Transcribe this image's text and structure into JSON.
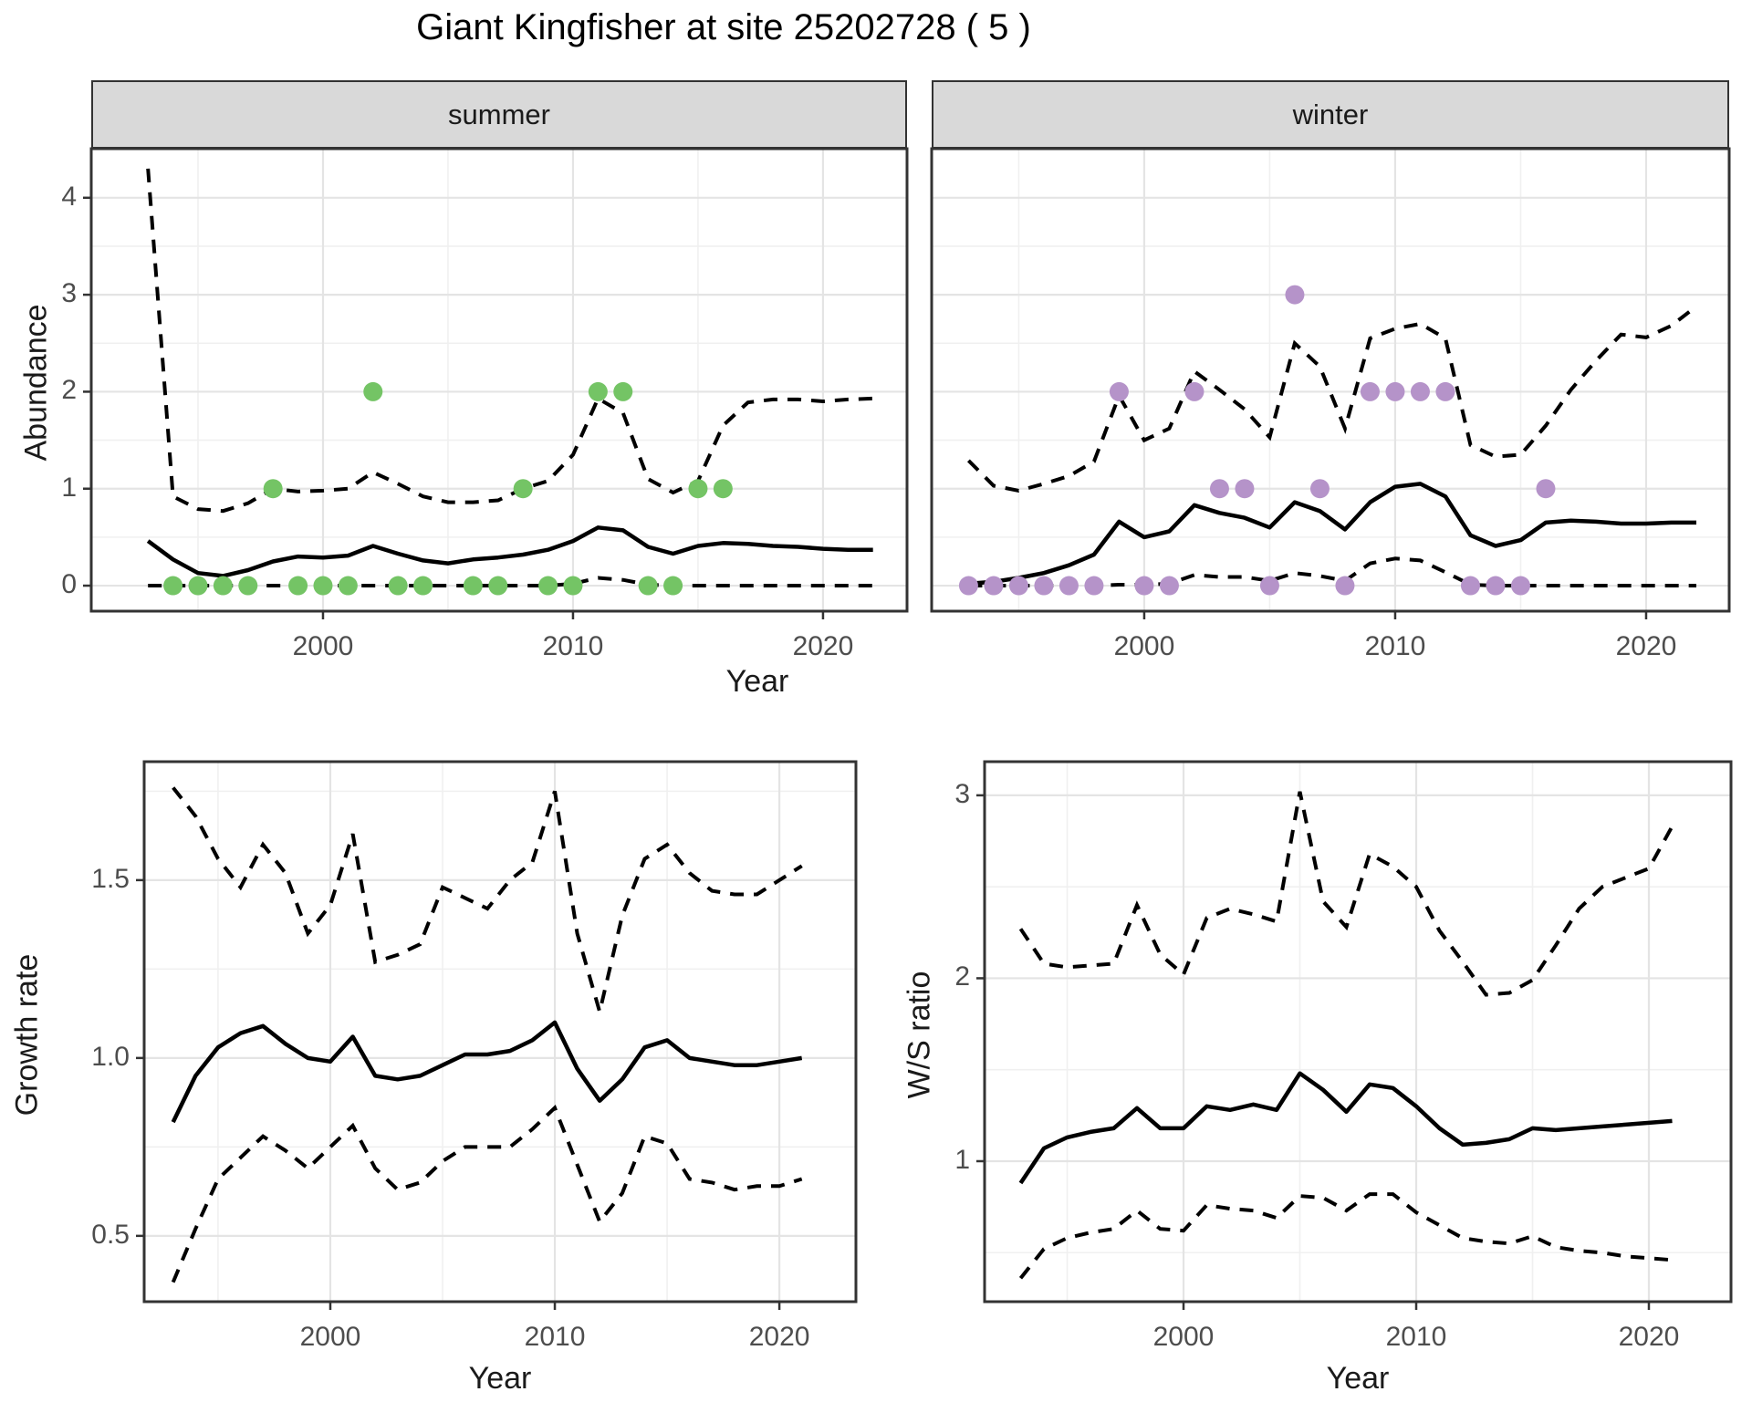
{
  "title": "Giant Kingfisher at site 25202728 ( 5 )",
  "axes": {
    "x_label": "Year",
    "y_label_abundance": "Abundance",
    "y_label_growth": "Growth rate",
    "y_label_ws": "W/S ratio"
  },
  "facets": [
    {
      "label": "summer"
    },
    {
      "label": "winter"
    }
  ],
  "colors": {
    "summer_points": "#74c465",
    "winter_points": "#b593c9",
    "line": "#000000",
    "grid_major": "#e4e4e4",
    "grid_minor": "#f0f0f0",
    "strip_bg": "#d9d9d9",
    "panel_border": "#333333",
    "axis_text": "#4d4d4d"
  },
  "chart_data": [
    {
      "id": "summer",
      "type": "line",
      "facet": "summer",
      "ylabel": "Abundance",
      "xlabel": "Year",
      "xlim": [
        1990.73,
        2023.36
      ],
      "ylim": [
        -0.263,
        4.506
      ],
      "xticks": [
        {
          "v": 2000,
          "label": "2000"
        },
        {
          "v": 2010,
          "label": "2010"
        },
        {
          "v": 2020,
          "label": "2020"
        }
      ],
      "yticks": [
        {
          "v": 0,
          "label": "0"
        },
        {
          "v": 1,
          "label": "1"
        },
        {
          "v": 2,
          "label": "2"
        },
        {
          "v": 3,
          "label": "3"
        },
        {
          "v": 4,
          "label": "4"
        }
      ],
      "xgrid_minor": [
        1995,
        2005,
        2015
      ],
      "ygrid_minor": [
        0.5,
        1.5,
        2.5,
        3.5,
        4.5
      ],
      "years": [
        1993,
        1994,
        1995,
        1996,
        1997,
        1998,
        1999,
        2000,
        2001,
        2002,
        2003,
        2004,
        2005,
        2006,
        2007,
        2008,
        2009,
        2010,
        2011,
        2012,
        2013,
        2014,
        2015,
        2016,
        2017,
        2018,
        2019,
        2020,
        2021,
        2022
      ],
      "median": [
        0.46,
        0.27,
        0.13,
        0.1,
        0.16,
        0.25,
        0.3,
        0.29,
        0.31,
        0.41,
        0.33,
        0.26,
        0.23,
        0.27,
        0.29,
        0.32,
        0.37,
        0.46,
        0.6,
        0.57,
        0.4,
        0.33,
        0.41,
        0.44,
        0.43,
        0.41,
        0.4,
        0.38,
        0.37,
        0.37
      ],
      "upper": [
        4.3,
        0.92,
        0.79,
        0.77,
        0.85,
        1.0,
        0.97,
        0.98,
        1.0,
        1.17,
        1.05,
        0.92,
        0.86,
        0.86,
        0.88,
        1.0,
        1.08,
        1.35,
        1.93,
        1.78,
        1.1,
        0.96,
        1.08,
        1.65,
        1.89,
        1.92,
        1.92,
        1.9,
        1.92,
        1.93
      ],
      "lower": [
        0,
        0,
        0,
        0,
        0,
        0,
        0,
        0,
        0,
        0,
        0,
        0,
        0,
        0,
        0,
        0,
        0,
        0.02,
        0.08,
        0.06,
        0.01,
        0,
        0,
        0,
        0,
        0,
        0,
        0,
        0,
        0
      ],
      "point_color": "#74c465",
      "points": [
        [
          1994,
          0
        ],
        [
          1995,
          0
        ],
        [
          1996,
          0
        ],
        [
          1997,
          0
        ],
        [
          1999,
          0
        ],
        [
          2000,
          0
        ],
        [
          2001,
          0
        ],
        [
          2003,
          0
        ],
        [
          2004,
          0
        ],
        [
          2006,
          0
        ],
        [
          2007,
          0
        ],
        [
          2009,
          0
        ],
        [
          2010,
          0
        ],
        [
          2013,
          0
        ],
        [
          2014,
          0
        ],
        [
          1998,
          1
        ],
        [
          2008,
          1
        ],
        [
          2015,
          1
        ],
        [
          2016,
          1
        ],
        [
          2002,
          2
        ],
        [
          2011,
          2
        ],
        [
          2012,
          2
        ]
      ]
    },
    {
      "id": "winter",
      "type": "line",
      "facet": "winter",
      "ylabel": "Abundance",
      "xlabel": "Year",
      "xlim": [
        1991.53,
        2023.31
      ],
      "ylim": [
        -0.263,
        4.506
      ],
      "xticks": [
        {
          "v": 2000,
          "label": "2000"
        },
        {
          "v": 2010,
          "label": "2010"
        },
        {
          "v": 2020,
          "label": "2020"
        }
      ],
      "yticks": [],
      "xgrid_minor": [
        1995,
        2005,
        2015
      ],
      "ygrid_minor": [
        0.5,
        1.5,
        2.5,
        3.5,
        4.5
      ],
      "years": [
        1993,
        1994,
        1995,
        1996,
        1997,
        1998,
        1999,
        2000,
        2001,
        2002,
        2003,
        2004,
        2005,
        2006,
        2007,
        2008,
        2009,
        2010,
        2011,
        2012,
        2013,
        2014,
        2015,
        2016,
        2017,
        2018,
        2019,
        2020,
        2021,
        2022
      ],
      "median": [
        0.02,
        0.04,
        0.08,
        0.13,
        0.21,
        0.32,
        0.66,
        0.5,
        0.56,
        0.83,
        0.75,
        0.7,
        0.6,
        0.86,
        0.77,
        0.58,
        0.86,
        1.02,
        1.05,
        0.92,
        0.52,
        0.41,
        0.47,
        0.65,
        0.67,
        0.66,
        0.64,
        0.64,
        0.65,
        0.65
      ],
      "upper": [
        1.29,
        1.03,
        0.98,
        1.05,
        1.13,
        1.28,
        1.96,
        1.5,
        1.62,
        2.21,
        2.02,
        1.82,
        1.53,
        2.5,
        2.26,
        1.62,
        2.55,
        2.65,
        2.7,
        2.55,
        1.45,
        1.33,
        1.35,
        1.65,
        2.02,
        2.32,
        2.59,
        2.56,
        2.68,
        2.88
      ],
      "lower": [
        0,
        0,
        0,
        0,
        0,
        0,
        0.01,
        0.01,
        0.02,
        0.11,
        0.09,
        0.09,
        0.05,
        0.13,
        0.1,
        0.05,
        0.23,
        0.28,
        0.26,
        0.14,
        0.01,
        0,
        0,
        0,
        0,
        0,
        0,
        0,
        0,
        0
      ],
      "point_color": "#b593c9",
      "points": [
        [
          1993,
          0
        ],
        [
          1994,
          0
        ],
        [
          1995,
          0
        ],
        [
          1996,
          0
        ],
        [
          1997,
          0
        ],
        [
          1998,
          0
        ],
        [
          2000,
          0
        ],
        [
          2001,
          0
        ],
        [
          2005,
          0
        ],
        [
          2008,
          0
        ],
        [
          2013,
          0
        ],
        [
          2014,
          0
        ],
        [
          2015,
          0
        ],
        [
          2003,
          1
        ],
        [
          2004,
          1
        ],
        [
          2007,
          1
        ],
        [
          2016,
          1
        ],
        [
          1999,
          2
        ],
        [
          2002,
          2
        ],
        [
          2009,
          2
        ],
        [
          2010,
          2
        ],
        [
          2011,
          2
        ],
        [
          2012,
          2
        ],
        [
          2006,
          3
        ]
      ]
    },
    {
      "id": "growth",
      "type": "line",
      "facet": null,
      "ylabel": "Growth rate",
      "xlabel": "Year",
      "xlim": [
        1991.71,
        2023.41
      ],
      "ylim": [
        0.315,
        1.833
      ],
      "xticks": [
        {
          "v": 2000,
          "label": "2000"
        },
        {
          "v": 2010,
          "label": "2010"
        },
        {
          "v": 2020,
          "label": "2020"
        }
      ],
      "yticks": [
        {
          "v": 0.5,
          "label": "0.5"
        },
        {
          "v": 1.0,
          "label": "1.0"
        },
        {
          "v": 1.5,
          "label": "1.5"
        }
      ],
      "xgrid_minor": [
        1995,
        2005,
        2015
      ],
      "ygrid_minor": [
        0.75,
        1.25,
        1.75
      ],
      "years": [
        1993,
        1994,
        1995,
        1996,
        1997,
        1998,
        1999,
        2000,
        2001,
        2002,
        2003,
        2004,
        2005,
        2006,
        2007,
        2008,
        2009,
        2010,
        2011,
        2012,
        2013,
        2014,
        2015,
        2016,
        2017,
        2018,
        2019,
        2020,
        2021
      ],
      "median": [
        0.82,
        0.95,
        1.03,
        1.07,
        1.09,
        1.04,
        1.0,
        0.99,
        1.06,
        0.95,
        0.94,
        0.95,
        0.98,
        1.01,
        1.01,
        1.02,
        1.05,
        1.1,
        0.97,
        0.88,
        0.94,
        1.03,
        1.05,
        1.0,
        0.99,
        0.98,
        0.98,
        0.99,
        1.0
      ],
      "upper": [
        1.76,
        1.68,
        1.56,
        1.48,
        1.6,
        1.52,
        1.35,
        1.43,
        1.63,
        1.27,
        1.29,
        1.32,
        1.48,
        1.45,
        1.42,
        1.5,
        1.55,
        1.75,
        1.35,
        1.13,
        1.4,
        1.56,
        1.6,
        1.52,
        1.47,
        1.46,
        1.46,
        1.5,
        1.54
      ],
      "lower": [
        0.37,
        0.52,
        0.66,
        0.72,
        0.78,
        0.74,
        0.69,
        0.75,
        0.81,
        0.69,
        0.63,
        0.65,
        0.71,
        0.75,
        0.75,
        0.75,
        0.8,
        0.86,
        0.7,
        0.54,
        0.62,
        0.78,
        0.76,
        0.66,
        0.65,
        0.63,
        0.64,
        0.64,
        0.66
      ],
      "point_color": null,
      "points": []
    },
    {
      "id": "ws",
      "type": "line",
      "facet": null,
      "ylabel": "W/S ratio",
      "xlabel": "Year",
      "xlim": [
        1991.45,
        2023.53
      ],
      "ylim": [
        0.232,
        3.184
      ],
      "xticks": [
        {
          "v": 2000,
          "label": "2000"
        },
        {
          "v": 2010,
          "label": "2010"
        },
        {
          "v": 2020,
          "label": "2020"
        }
      ],
      "yticks": [
        {
          "v": 1,
          "label": "1"
        },
        {
          "v": 2,
          "label": "2"
        },
        {
          "v": 3,
          "label": "3"
        }
      ],
      "xgrid_minor": [
        1995,
        2005,
        2015
      ],
      "ygrid_minor": [
        0.5,
        1.5,
        2.5
      ],
      "years": [
        1993,
        1994,
        1995,
        1996,
        1997,
        1998,
        1999,
        2000,
        2001,
        2002,
        2003,
        2004,
        2005,
        2006,
        2007,
        2008,
        2009,
        2010,
        2011,
        2012,
        2013,
        2014,
        2015,
        2016,
        2017,
        2018,
        2019,
        2020,
        2021
      ],
      "median": [
        0.88,
        1.07,
        1.13,
        1.16,
        1.18,
        1.29,
        1.18,
        1.18,
        1.3,
        1.28,
        1.31,
        1.28,
        1.48,
        1.39,
        1.27,
        1.42,
        1.4,
        1.3,
        1.18,
        1.09,
        1.1,
        1.12,
        1.18,
        1.17,
        1.18,
        1.19,
        1.2,
        1.21,
        1.22
      ],
      "upper": [
        2.27,
        2.08,
        2.06,
        2.07,
        2.08,
        2.4,
        2.13,
        2.02,
        2.33,
        2.38,
        2.35,
        2.31,
        3.02,
        2.42,
        2.28,
        2.68,
        2.61,
        2.5,
        2.26,
        2.09,
        1.91,
        1.92,
        1.99,
        2.18,
        2.38,
        2.5,
        2.55,
        2.6,
        2.83
      ],
      "lower": [
        0.36,
        0.52,
        0.58,
        0.61,
        0.63,
        0.73,
        0.63,
        0.62,
        0.76,
        0.74,
        0.73,
        0.69,
        0.81,
        0.8,
        0.73,
        0.82,
        0.82,
        0.72,
        0.65,
        0.58,
        0.56,
        0.55,
        0.59,
        0.53,
        0.51,
        0.5,
        0.48,
        0.47,
        0.46
      ],
      "point_color": null,
      "points": []
    }
  ]
}
